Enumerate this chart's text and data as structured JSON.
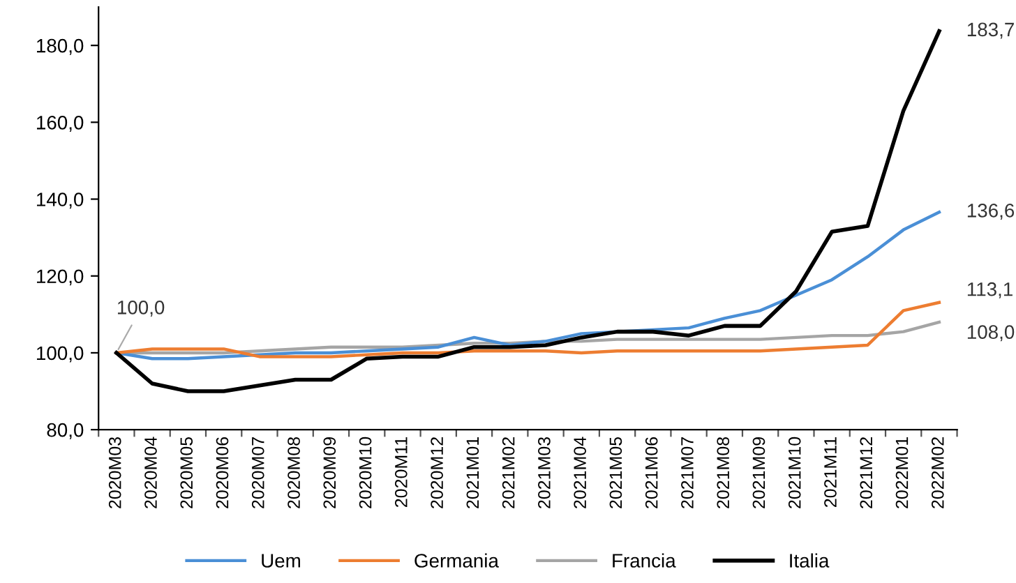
{
  "chart_data": {
    "type": "line",
    "categories": [
      "2020M03",
      "2020M04",
      "2020M05",
      "2020M06",
      "2020M07",
      "2020M08",
      "2020M09",
      "2020M10",
      "2020M11",
      "2020M12",
      "2021M01",
      "2021M02",
      "2021M03",
      "2021M04",
      "2021M05",
      "2021M06",
      "2021M07",
      "2021M08",
      "2021M09",
      "2021M10",
      "2021M11",
      "2021M12",
      "2022M01",
      "2022M02"
    ],
    "series": [
      {
        "name": "Uem",
        "color": "#4a8fd6",
        "values": [
          100,
          98.5,
          98.5,
          99,
          99.5,
          100,
          100,
          100.5,
          101,
          101.5,
          104,
          102,
          103,
          105,
          105.5,
          106,
          106.5,
          109,
          111,
          115,
          119,
          125,
          132,
          136.6
        ],
        "value_labels": [
          null,
          null,
          null,
          null,
          null,
          null,
          null,
          null,
          null,
          null,
          null,
          null,
          null,
          null,
          null,
          null,
          null,
          null,
          null,
          null,
          null,
          null,
          null,
          "136,6"
        ]
      },
      {
        "name": "Germania",
        "color": "#ed7d31",
        "values": [
          100,
          101,
          101,
          101,
          99,
          99,
          99,
          99.5,
          100,
          100,
          100.5,
          100.5,
          100.5,
          100,
          100.5,
          100.5,
          100.5,
          100.5,
          100.5,
          101,
          101.5,
          102,
          111,
          113.1
        ],
        "value_labels": [
          null,
          null,
          null,
          null,
          null,
          null,
          null,
          null,
          null,
          null,
          null,
          null,
          null,
          null,
          null,
          null,
          null,
          null,
          null,
          null,
          null,
          null,
          null,
          "113,1"
        ]
      },
      {
        "name": "Francia",
        "color": "#a5a5a5",
        "values": [
          100,
          100,
          100,
          100,
          100.5,
          101,
          101.5,
          101.5,
          101.5,
          102,
          102.5,
          102.5,
          103,
          103,
          103.5,
          103.5,
          103.5,
          103.5,
          103.5,
          104,
          104.5,
          104.5,
          105.5,
          108.0
        ],
        "value_labels": [
          null,
          null,
          null,
          null,
          null,
          null,
          null,
          null,
          null,
          null,
          null,
          null,
          null,
          null,
          null,
          null,
          null,
          null,
          null,
          null,
          null,
          null,
          null,
          "108,0"
        ]
      },
      {
        "name": "Italia",
        "color": "#000000",
        "values": [
          100,
          92,
          90,
          90,
          91.5,
          93,
          93,
          98.5,
          99,
          99,
          101.5,
          101.5,
          102,
          104,
          105.5,
          105.5,
          104.5,
          107,
          107,
          116,
          131.5,
          133,
          163,
          183.7
        ],
        "value_labels": [
          null,
          null,
          null,
          null,
          null,
          null,
          null,
          null,
          null,
          null,
          null,
          null,
          null,
          null,
          null,
          null,
          null,
          null,
          null,
          null,
          null,
          null,
          null,
          "183,7"
        ]
      }
    ],
    "annotations": [
      {
        "text": "100,0",
        "x": "2020M03",
        "y": 100
      }
    ],
    "ylim": [
      80,
      190
    ],
    "yticks": [
      {
        "value": 80,
        "label": "80,0"
      },
      {
        "value": 100,
        "label": "100,0"
      },
      {
        "value": 120,
        "label": "120,0"
      },
      {
        "value": 140,
        "label": "140,0"
      },
      {
        "value": 160,
        "label": "160,0"
      },
      {
        "value": 180,
        "label": "180,0"
      }
    ],
    "legend": "bottom",
    "line_style": "solid",
    "marker": "none"
  }
}
